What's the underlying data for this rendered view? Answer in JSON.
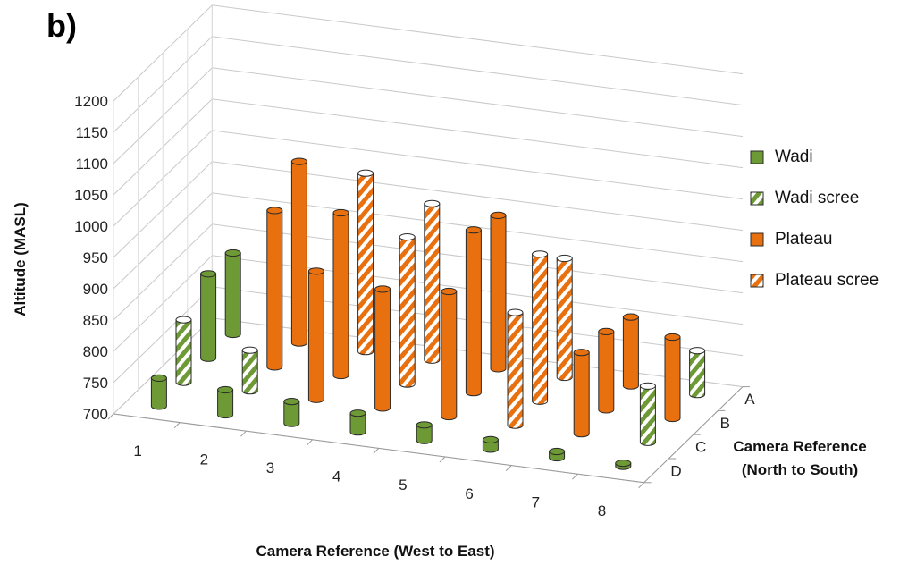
{
  "panel_label": "b)",
  "colors": {
    "wadi": "#6e9a35",
    "plateau": "#e8700f",
    "stripe": "#ffffff"
  },
  "chart_data": {
    "type": "bar",
    "subtype": "3d-cylinder",
    "title": "",
    "ylabel": "Altitude (MASL)",
    "xlabel": "Camera Reference (West to East)",
    "zlabel": [
      "Camera Reference",
      "(North to South)"
    ],
    "yticks": [
      700,
      750,
      800,
      850,
      900,
      950,
      1000,
      1050,
      1100,
      1150,
      1200
    ],
    "ylim": [
      700,
      1200
    ],
    "x_categories": [
      "1",
      "2",
      "3",
      "4",
      "5",
      "6",
      "7",
      "8"
    ],
    "z_categories": [
      "A",
      "B",
      "C",
      "D"
    ],
    "series": [
      {
        "name": "Wadi",
        "color": "#6e9a35",
        "pattern": "solid"
      },
      {
        "name": "Wadi scree",
        "color": "#6e9a35",
        "pattern": "striped"
      },
      {
        "name": "Plateau",
        "color": "#e8700f",
        "pattern": "solid"
      },
      {
        "name": "Plateau scree",
        "color": "#e8700f",
        "pattern": "striped"
      }
    ],
    "bars": [
      {
        "x": "1",
        "z": "A",
        "series": "Wadi",
        "value": 830
      },
      {
        "x": "2",
        "z": "A",
        "series": "Plateau",
        "value": 990
      },
      {
        "x": "3",
        "z": "A",
        "series": "Plateau scree",
        "value": 985
      },
      {
        "x": "4",
        "z": "A",
        "series": "Plateau scree",
        "value": 950
      },
      {
        "x": "5",
        "z": "A",
        "series": "Plateau",
        "value": 945
      },
      {
        "x": "6",
        "z": "A",
        "series": "Plateau scree",
        "value": 890
      },
      {
        "x": "7",
        "z": "A",
        "series": "Plateau",
        "value": 810
      },
      {
        "x": "8",
        "z": "A",
        "series": "Wadi scree",
        "value": 770
      },
      {
        "x": "1",
        "z": "B",
        "series": "Wadi",
        "value": 835
      },
      {
        "x": "2",
        "z": "B",
        "series": "Plateau",
        "value": 950
      },
      {
        "x": "3",
        "z": "B",
        "series": "Plateau",
        "value": 960
      },
      {
        "x": "4",
        "z": "B",
        "series": "Plateau scree",
        "value": 935
      },
      {
        "x": "5",
        "z": "B",
        "series": "Plateau",
        "value": 960
      },
      {
        "x": "6",
        "z": "B",
        "series": "Plateau scree",
        "value": 935
      },
      {
        "x": "7",
        "z": "B",
        "series": "Plateau",
        "value": 825
      },
      {
        "x": "8",
        "z": "B",
        "series": "Plateau",
        "value": 830
      },
      {
        "x": "1",
        "z": "C",
        "series": "Wadi scree",
        "value": 800
      },
      {
        "x": "2",
        "z": "C",
        "series": "Wadi scree",
        "value": 765
      },
      {
        "x": "3",
        "z": "C",
        "series": "Plateau",
        "value": 905
      },
      {
        "x": "4",
        "z": "C",
        "series": "Plateau",
        "value": 890
      },
      {
        "x": "5",
        "z": "C",
        "series": "Plateau",
        "value": 900
      },
      {
        "x": "6",
        "z": "C",
        "series": "Plateau scree",
        "value": 880
      },
      {
        "x": "7",
        "z": "C",
        "series": "Plateau",
        "value": 830
      },
      {
        "x": "8",
        "z": "C",
        "series": "Wadi scree",
        "value": 790
      },
      {
        "x": "1",
        "z": "D",
        "series": "Wadi",
        "value": 745
      },
      {
        "x": "2",
        "z": "D",
        "series": "Wadi",
        "value": 740
      },
      {
        "x": "3",
        "z": "D",
        "series": "Wadi",
        "value": 735
      },
      {
        "x": "4",
        "z": "D",
        "series": "Wadi",
        "value": 730
      },
      {
        "x": "5",
        "z": "D",
        "series": "Wadi",
        "value": 725
      },
      {
        "x": "6",
        "z": "D",
        "series": "Wadi",
        "value": 715
      },
      {
        "x": "7",
        "z": "D",
        "series": "Wadi",
        "value": 710
      },
      {
        "x": "8",
        "z": "D",
        "series": "Wadi",
        "value": 705
      }
    ],
    "legend_position": "right",
    "grid": true
  }
}
